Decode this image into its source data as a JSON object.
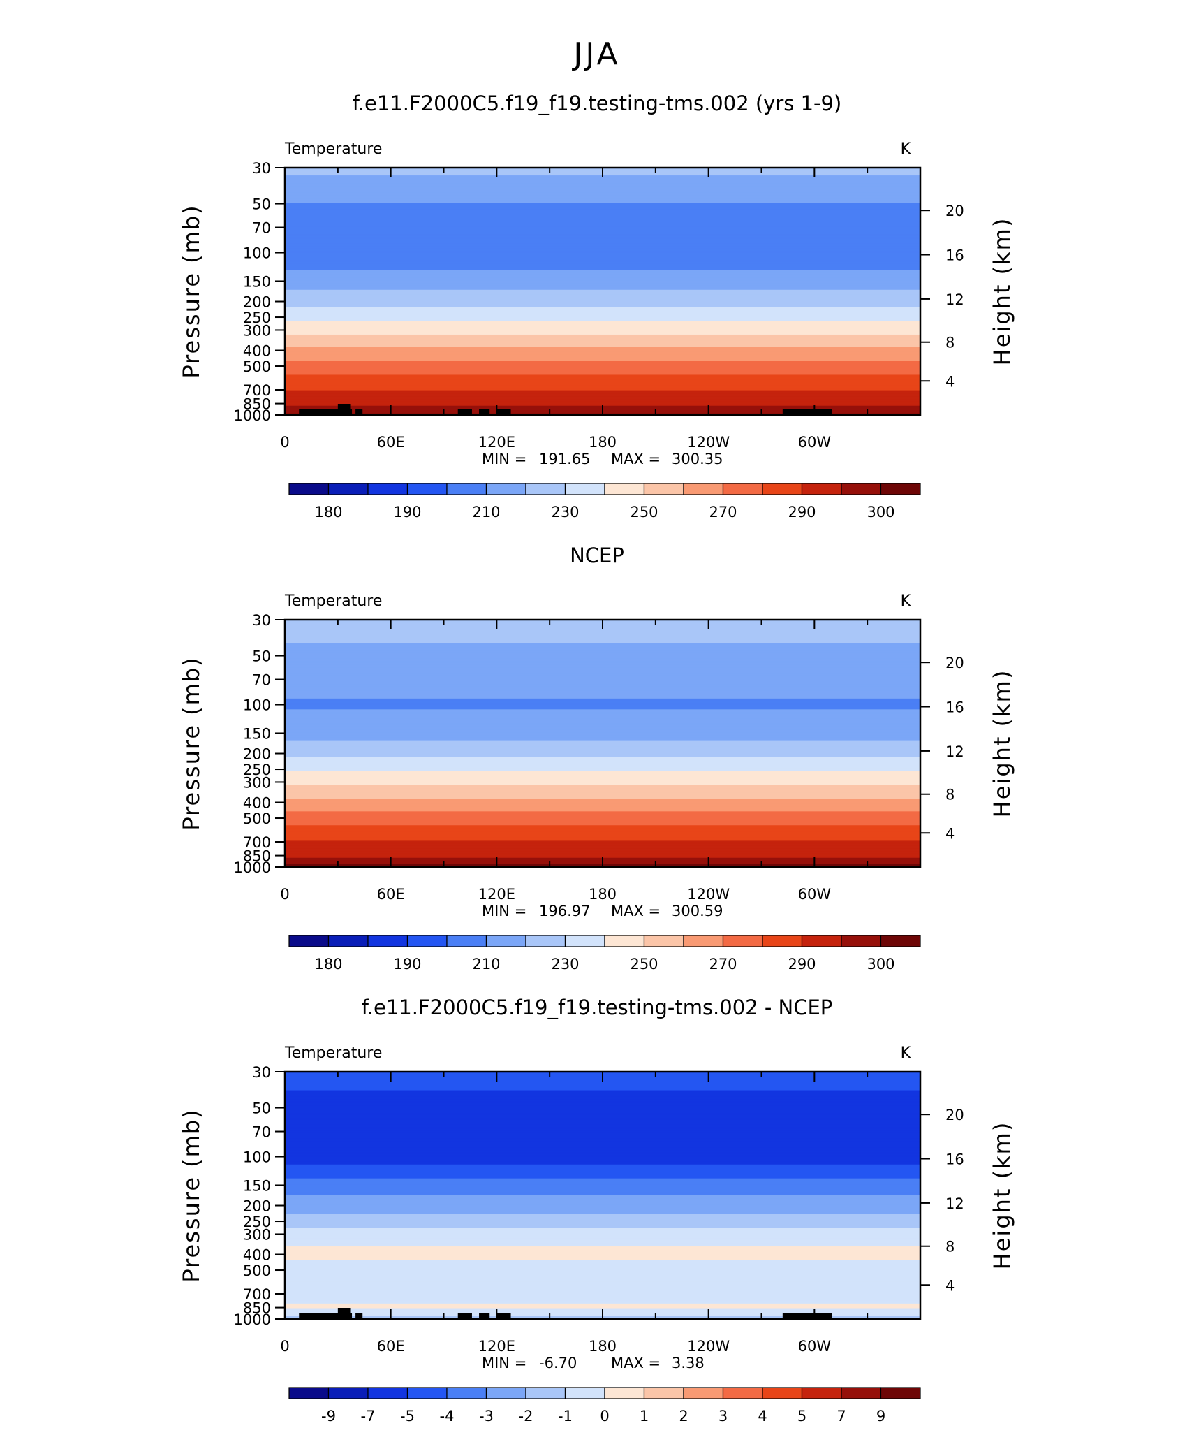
{
  "main_title": "JJA",
  "colors": {
    "temp_palette": [
      "#0a0b8a",
      "#0a1eb8",
      "#1235e0",
      "#2456f2",
      "#4a7ff5",
      "#7ba6f7",
      "#a9c6f8",
      "#d2e3fb",
      "#fde6d4",
      "#fbc5a8",
      "#f99a73",
      "#f36a44",
      "#e84518",
      "#c5230d",
      "#96100a",
      "#6e0606"
    ],
    "diff_palette": [
      "#0a0b8a",
      "#0a1eb8",
      "#1235e0",
      "#2456f2",
      "#4a7ff5",
      "#7ba6f7",
      "#a9c6f8",
      "#d2e3fb",
      "#fde6d4",
      "#fbc5a8",
      "#f99a73",
      "#f36a44",
      "#e84518",
      "#c5230d",
      "#96100a",
      "#6e0606"
    ],
    "topography": "#000000"
  },
  "panels": [
    {
      "title": "f.e11.F2000C5.f19_f19.testing-tms.002 (yrs 1-9)",
      "left_label": "Temperature",
      "units": "K",
      "min_label": "MIN",
      "min_value": "191.65",
      "max_label": "MAX",
      "max_value": "300.35",
      "colorbar_labels": [
        "180",
        "190",
        "210",
        "230",
        "250",
        "270",
        "290",
        "300"
      ]
    },
    {
      "title": "NCEP",
      "left_label": "Temperature",
      "units": "K",
      "min_label": "MIN",
      "min_value": "196.97",
      "max_label": "MAX",
      "max_value": "300.59",
      "colorbar_labels": [
        "180",
        "190",
        "210",
        "230",
        "250",
        "270",
        "290",
        "300"
      ]
    },
    {
      "title": "f.e11.F2000C5.f19_f19.testing-tms.002 - NCEP",
      "left_label": "Temperature",
      "units": "K",
      "min_label": "MIN",
      "min_value": "-6.70",
      "max_label": "MAX",
      "max_value": "3.38",
      "colorbar_labels": [
        "-9",
        "-7",
        "-5",
        "-4",
        "-3",
        "-2",
        "-1",
        "0",
        "1",
        "2",
        "3",
        "4",
        "5",
        "7",
        "9"
      ]
    }
  ],
  "chart_data": [
    {
      "type": "heatmap",
      "title": "f.e11.F2000C5.f19_f19.testing-tms.002 (yrs 1-9)",
      "xlabel": "",
      "ylabel": "Pressure (mb)",
      "ylabel_right": "Height (km)",
      "x_ticks": [
        "0",
        "60E",
        "120E",
        "180",
        "120W",
        "60W"
      ],
      "y_ticks": [
        30,
        50,
        70,
        100,
        150,
        200,
        250,
        300,
        400,
        500,
        700,
        850,
        1000
      ],
      "y_right_ticks": [
        20,
        16,
        12,
        8,
        4
      ],
      "y_scale": "log",
      "ylim": [
        1000,
        30
      ],
      "xlim": [
        0,
        360
      ],
      "contour_levels": [
        175,
        180,
        185,
        190,
        200,
        210,
        220,
        230,
        240,
        250,
        260,
        270,
        280,
        290,
        295,
        300
      ],
      "profile": [
        {
          "p": 30,
          "T": 213
        },
        {
          "p": 50,
          "T": 200
        },
        {
          "p": 70,
          "T": 195
        },
        {
          "p": 100,
          "T": 193
        },
        {
          "p": 150,
          "T": 205
        },
        {
          "p": 200,
          "T": 217
        },
        {
          "p": 250,
          "T": 227
        },
        {
          "p": 300,
          "T": 237
        },
        {
          "p": 400,
          "T": 252
        },
        {
          "p": 500,
          "T": 264
        },
        {
          "p": 700,
          "T": 280
        },
        {
          "p": 850,
          "T": 288
        },
        {
          "p": 1000,
          "T": 296
        }
      ],
      "min": 191.65,
      "max": 300.35,
      "units": "K"
    },
    {
      "type": "heatmap",
      "title": "NCEP",
      "xlabel": "",
      "ylabel": "Pressure (mb)",
      "ylabel_right": "Height (km)",
      "x_ticks": [
        "0",
        "60E",
        "120E",
        "180",
        "120W",
        "60W"
      ],
      "y_ticks": [
        30,
        50,
        70,
        100,
        150,
        200,
        250,
        300,
        400,
        500,
        700,
        850,
        1000
      ],
      "y_right_ticks": [
        20,
        16,
        12,
        8,
        4
      ],
      "y_scale": "log",
      "ylim": [
        1000,
        30
      ],
      "xlim": [
        0,
        360
      ],
      "contour_levels": [
        175,
        180,
        185,
        190,
        200,
        210,
        220,
        230,
        240,
        250,
        260,
        270,
        280,
        290,
        295,
        300
      ],
      "profile": [
        {
          "p": 30,
          "T": 215
        },
        {
          "p": 50,
          "T": 207
        },
        {
          "p": 70,
          "T": 203
        },
        {
          "p": 100,
          "T": 199
        },
        {
          "p": 150,
          "T": 206
        },
        {
          "p": 200,
          "T": 218
        },
        {
          "p": 250,
          "T": 228
        },
        {
          "p": 300,
          "T": 238
        },
        {
          "p": 400,
          "T": 253
        },
        {
          "p": 500,
          "T": 265
        },
        {
          "p": 700,
          "T": 281
        },
        {
          "p": 850,
          "T": 289
        },
        {
          "p": 1000,
          "T": 297
        }
      ],
      "min": 196.97,
      "max": 300.59,
      "units": "K"
    },
    {
      "type": "heatmap",
      "title": "f.e11.F2000C5.f19_f19.testing-tms.002 - NCEP",
      "xlabel": "",
      "ylabel": "Pressure (mb)",
      "ylabel_right": "Height (km)",
      "x_ticks": [
        "0",
        "60E",
        "120E",
        "180",
        "120W",
        "60W"
      ],
      "y_ticks": [
        30,
        50,
        70,
        100,
        150,
        200,
        250,
        300,
        400,
        500,
        700,
        850,
        1000
      ],
      "y_right_ticks": [
        20,
        16,
        12,
        8,
        4
      ],
      "y_scale": "log",
      "ylim": [
        1000,
        30
      ],
      "xlim": [
        0,
        360
      ],
      "contour_levels": [
        -9,
        -7,
        -5,
        -4,
        -3,
        -2,
        -1,
        0,
        1,
        2,
        3,
        4,
        5,
        7,
        9
      ],
      "profile": [
        {
          "p": 30,
          "T": -4.5
        },
        {
          "p": 50,
          "T": -5.5
        },
        {
          "p": 70,
          "T": -5.0
        },
        {
          "p": 100,
          "T": -5.5
        },
        {
          "p": 150,
          "T": -3.5
        },
        {
          "p": 200,
          "T": -2.5
        },
        {
          "p": 250,
          "T": -1.5
        },
        {
          "p": 300,
          "T": -0.5
        },
        {
          "p": 400,
          "T": 0.3
        },
        {
          "p": 500,
          "T": -0.5
        },
        {
          "p": 700,
          "T": -0.5
        },
        {
          "p": 850,
          "T": 0.2
        },
        {
          "p": 1000,
          "T": -1.5
        }
      ],
      "min": -6.7,
      "max": 3.38,
      "units": "K"
    }
  ]
}
